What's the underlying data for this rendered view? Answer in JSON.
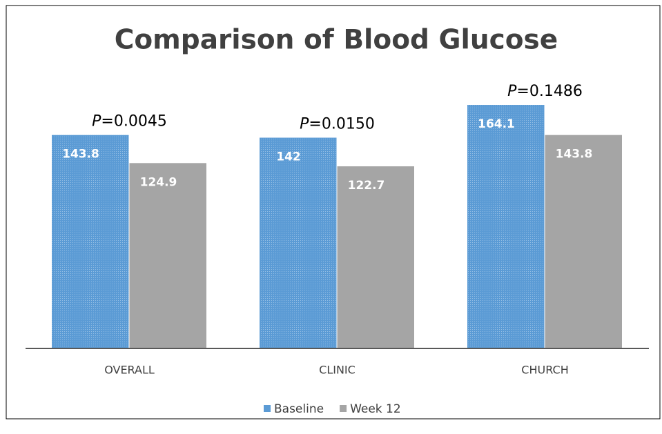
{
  "chart_data": {
    "type": "bar",
    "title": "Comparison of Blood Glucose",
    "categories": [
      "OVERALL",
      "CLINIC",
      "CHURCH"
    ],
    "series": [
      {
        "name": "Baseline",
        "color": "#5b9bd5",
        "values": [
          143.8,
          142,
          164.1
        ]
      },
      {
        "name": "Week 12",
        "color": "#a5a5a5",
        "values": [
          124.9,
          122.7,
          143.8
        ]
      }
    ],
    "annotations": [
      "P=0.0045",
      "P=0.0150",
      "P=0.1486"
    ],
    "legend": "bottom"
  }
}
